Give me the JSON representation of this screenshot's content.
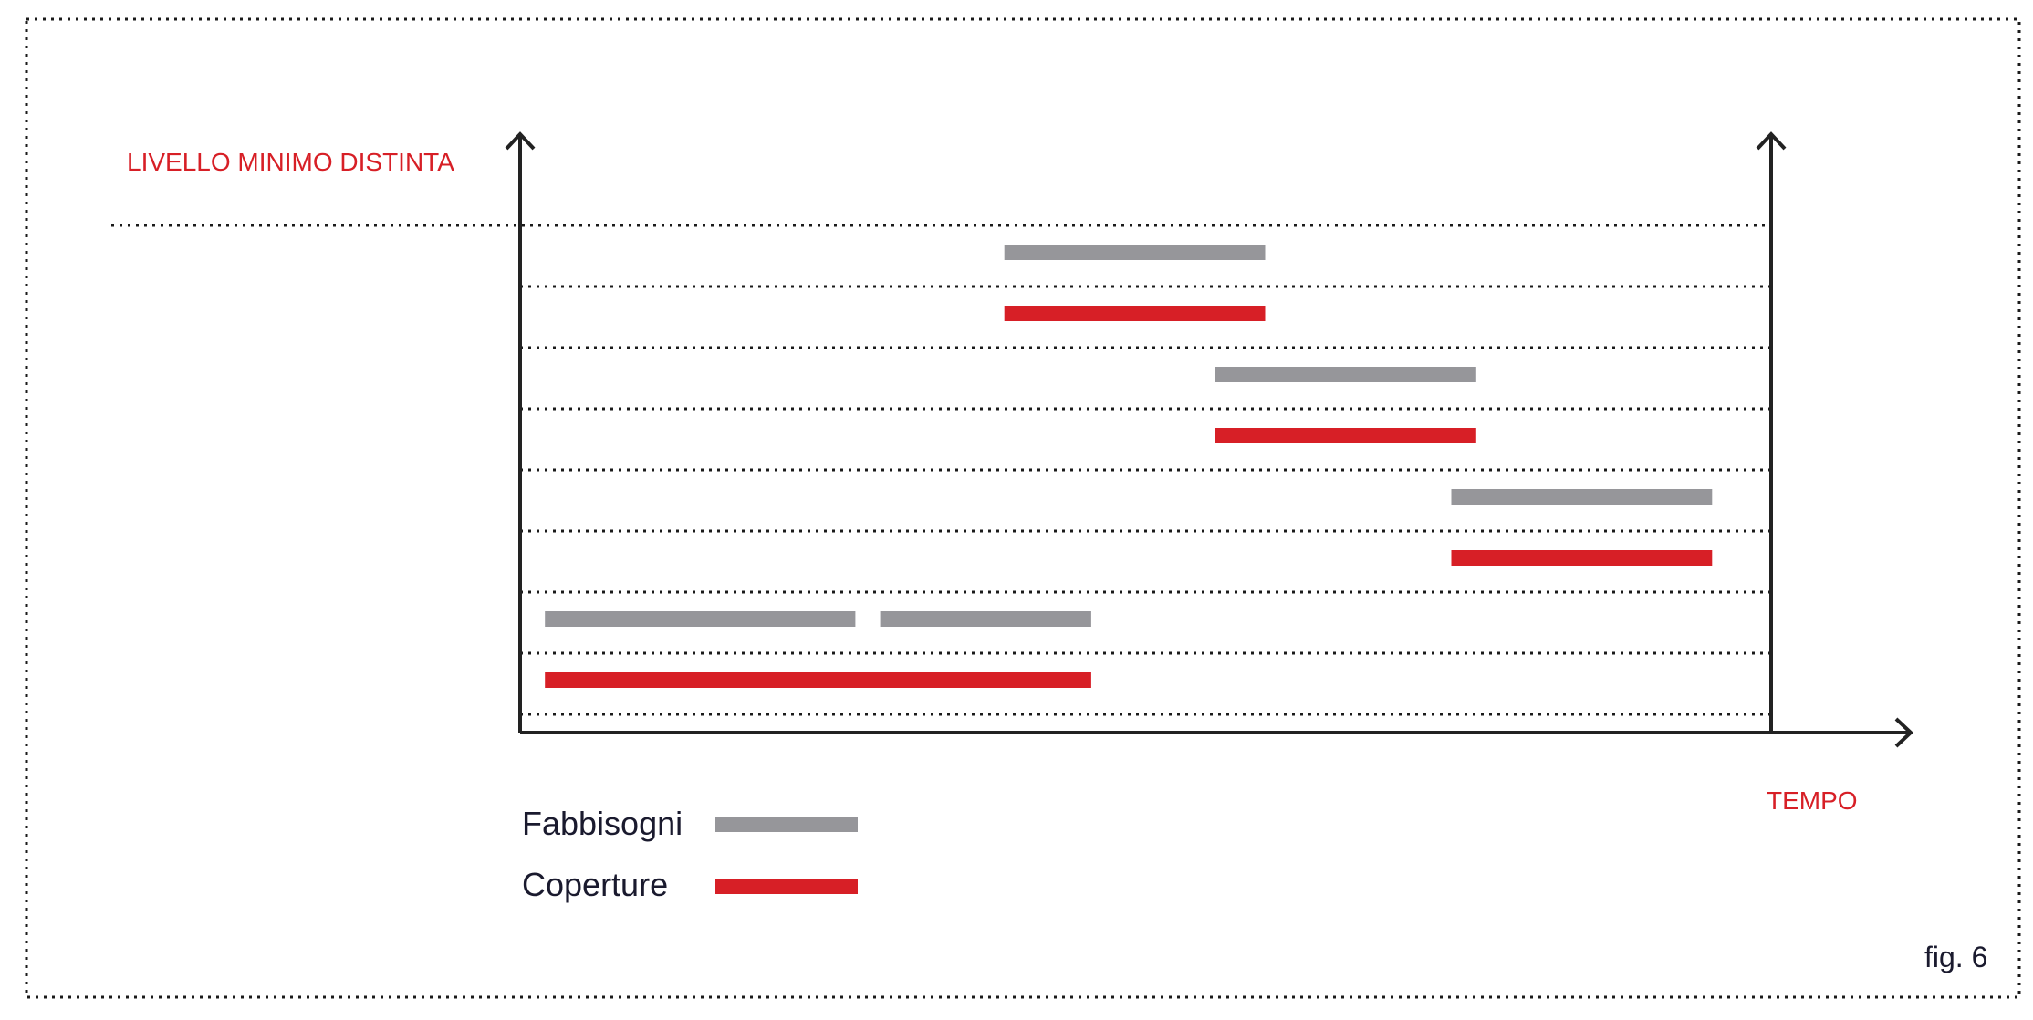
{
  "labels": {
    "y_axis": "LIVELLO MINIMO DISTINTA",
    "x_axis": "TEMPO",
    "figure": "fig. 6"
  },
  "legend": {
    "requirements": "Fabbisogni",
    "coverage": "Coperture"
  },
  "colors": {
    "requirements": "#96969a",
    "coverage": "#d71f26",
    "axis": "#222222",
    "gridline": "#1a1a1a",
    "label": "#d71f26",
    "text": "#1a1a2e"
  },
  "chart_data": {
    "type": "gantt",
    "levels": 8,
    "series": [
      {
        "name": "Fabbisogni",
        "key": "requirements"
      },
      {
        "name": "Coperture",
        "key": "coverage"
      }
    ],
    "bars": [
      {
        "series": "requirements",
        "level": 1,
        "start": 3.9,
        "end": 6.0
      },
      {
        "series": "coverage",
        "level": 2,
        "start": 3.9,
        "end": 6.0
      },
      {
        "series": "requirements",
        "level": 3,
        "start": 5.6,
        "end": 7.7
      },
      {
        "series": "coverage",
        "level": 4,
        "start": 5.6,
        "end": 7.7
      },
      {
        "series": "requirements",
        "level": 5,
        "start": 7.5,
        "end": 9.6
      },
      {
        "series": "coverage",
        "level": 6,
        "start": 7.5,
        "end": 9.6
      },
      {
        "series": "requirements",
        "level": 7,
        "start": 0.2,
        "end": 2.7
      },
      {
        "series": "requirements",
        "level": 7,
        "start": 2.9,
        "end": 4.6
      },
      {
        "series": "coverage",
        "level": 8,
        "start": 0.2,
        "end": 4.6
      }
    ],
    "xlim": [
      0,
      11.2
    ]
  }
}
